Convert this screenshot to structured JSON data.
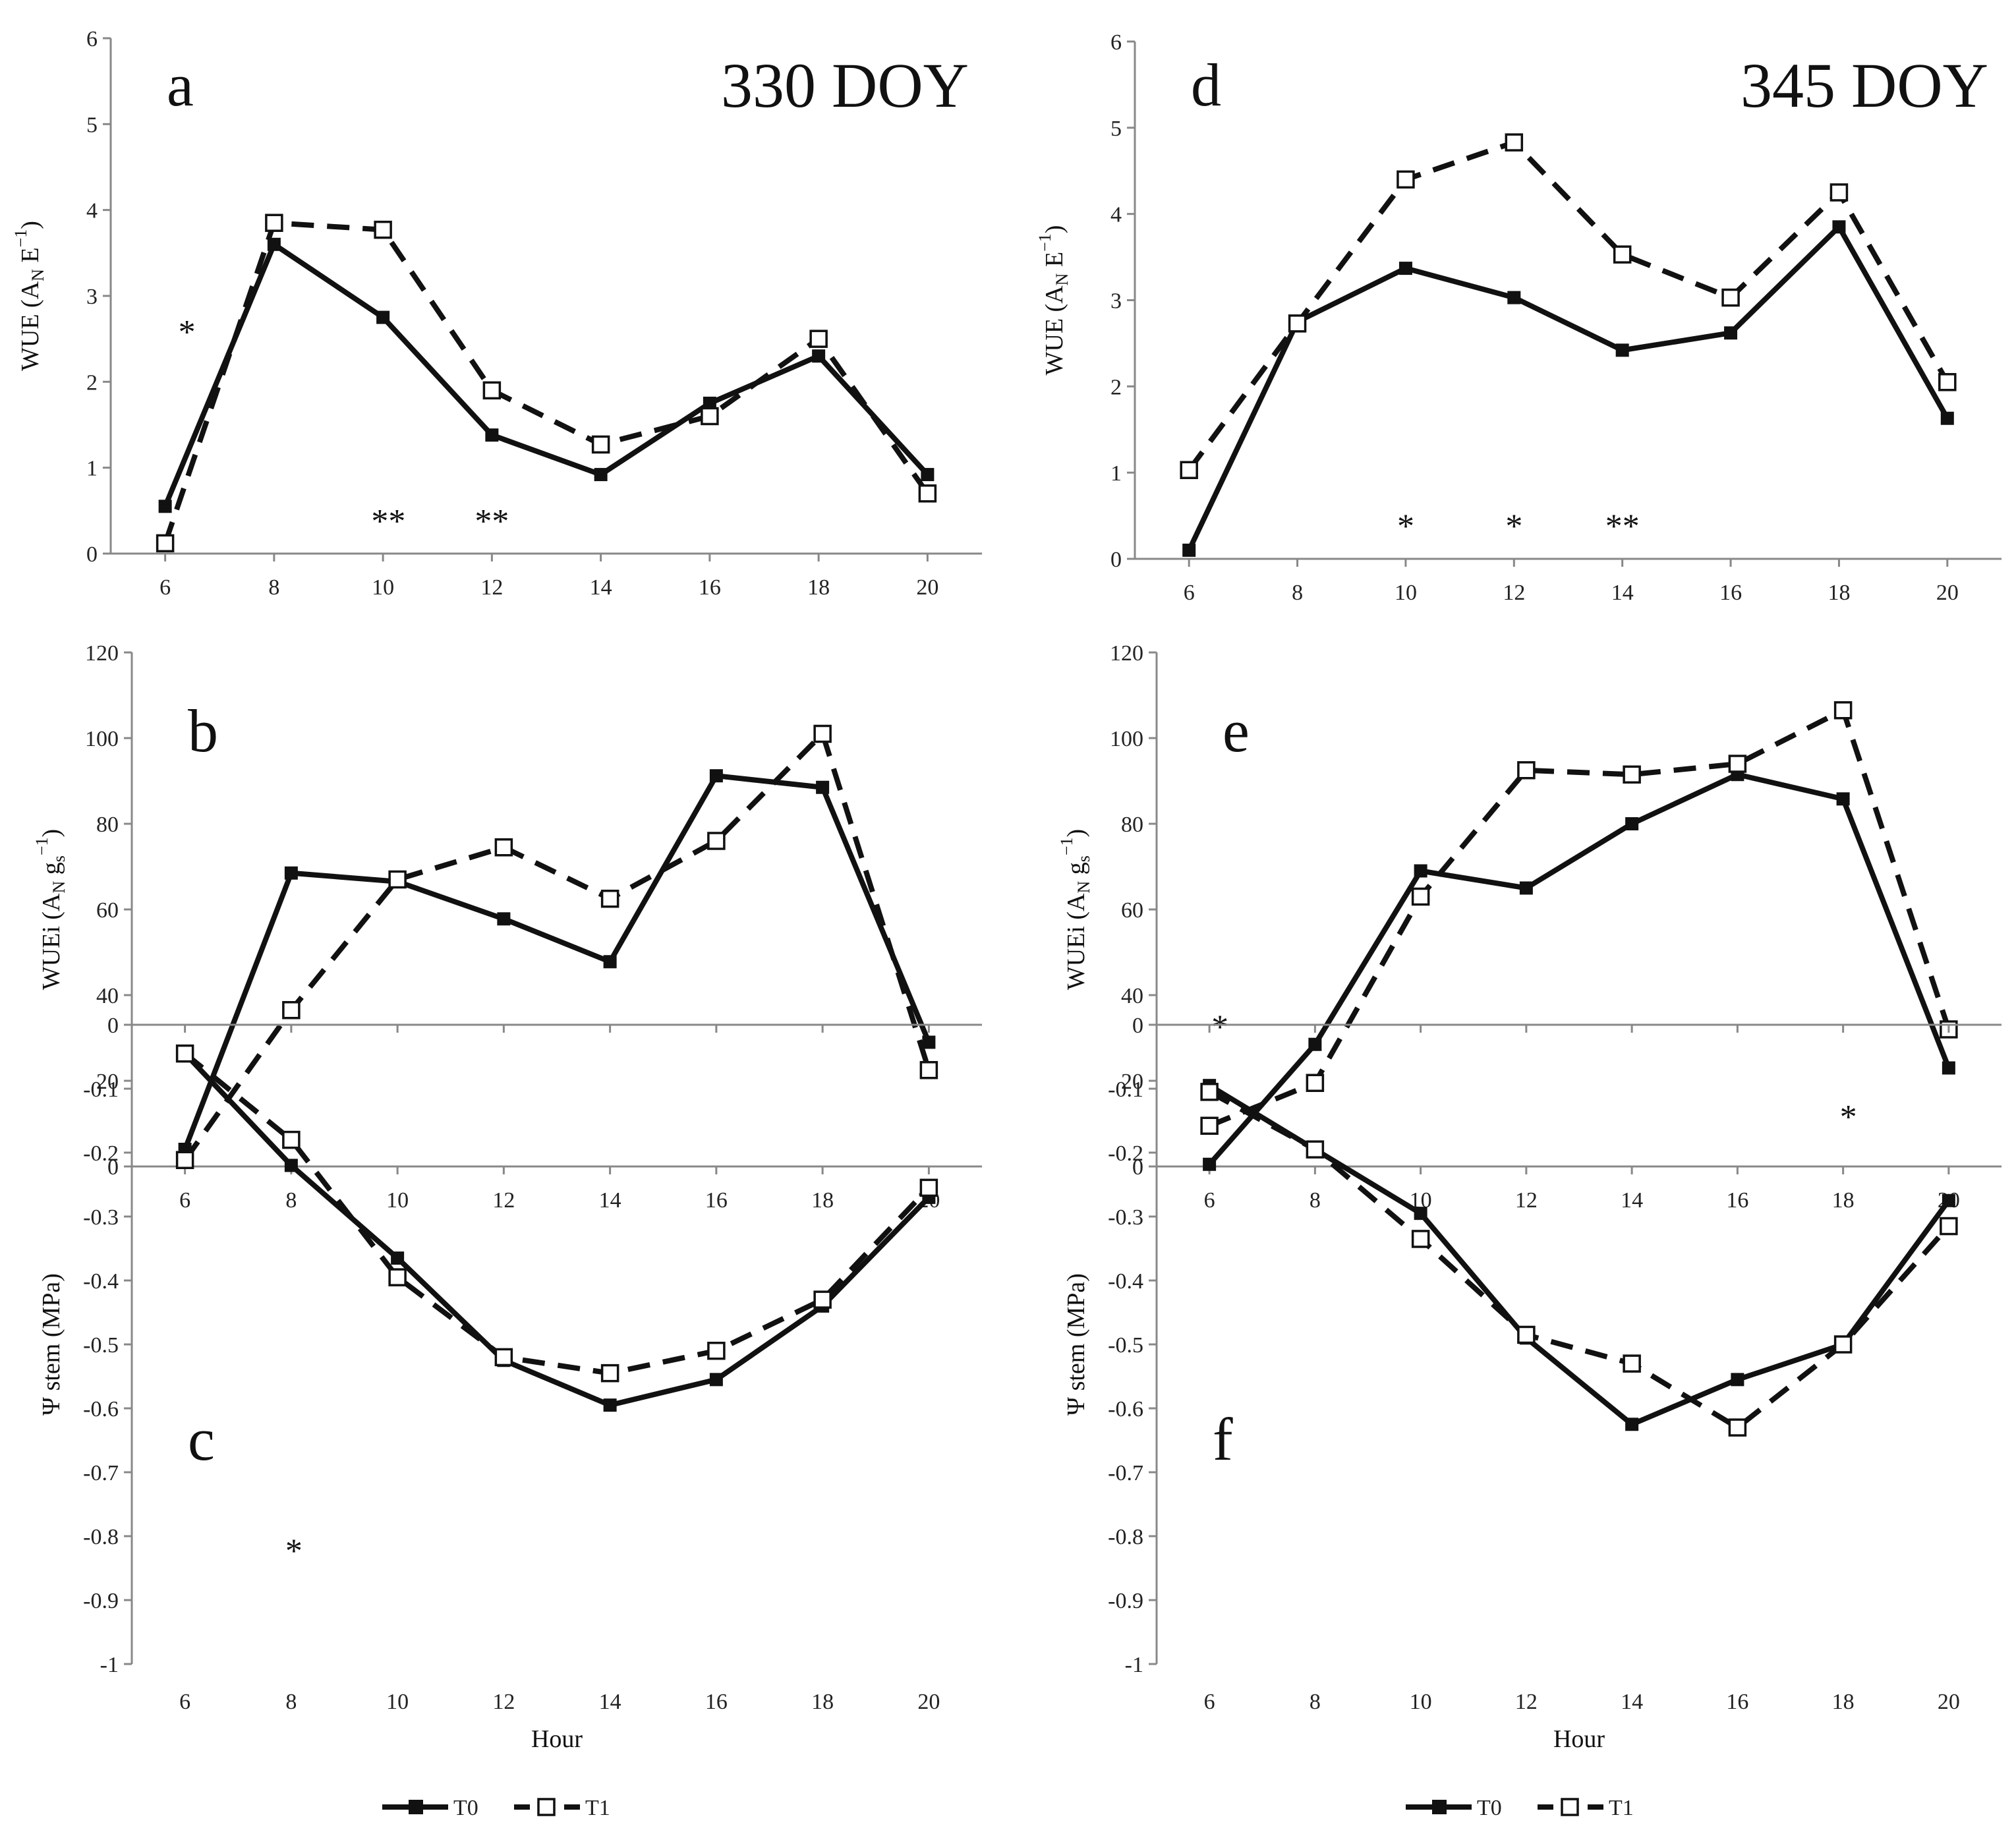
{
  "figure": {
    "legend": {
      "entries": [
        {
          "name": "T0",
          "style": "solid",
          "marker": "filled-square"
        },
        {
          "name": "T1",
          "style": "dashed",
          "marker": "open-square"
        }
      ]
    },
    "colors": {
      "line": "#111111",
      "background": "#ffffff",
      "axis": "#888888"
    }
  },
  "chart_data": [
    {
      "id": "a",
      "type": "line",
      "letter": "a",
      "title": "330 DOY",
      "ylabel_main": "WUE (A",
      "ylabel_sub": "N",
      "ylabel_rest": " E",
      "ylabel_sup": "−1",
      "ylabel_end": ")",
      "xlabel": "",
      "x": [
        6,
        8,
        10,
        12,
        14,
        16,
        18,
        20
      ],
      "ylim": [
        0,
        6
      ],
      "yticks": [
        0,
        1,
        2,
        3,
        4,
        5,
        6
      ],
      "ytick_labels": [
        "0",
        "1",
        "2",
        "3",
        "4",
        "5",
        "6"
      ],
      "series": [
        {
          "name": "T0",
          "values": [
            0.55,
            3.6,
            2.75,
            1.38,
            0.92,
            1.75,
            2.3,
            0.92
          ]
        },
        {
          "name": "T1",
          "values": [
            0.12,
            3.85,
            3.77,
            1.9,
            1.27,
            1.6,
            2.5,
            0.7
          ]
        }
      ],
      "annotations": [
        {
          "text": "*",
          "x": 6.4,
          "y": 2.6
        },
        {
          "text": "**",
          "x": 10.1,
          "y": 0.4
        },
        {
          "text": "**",
          "x": 12.0,
          "y": 0.4
        }
      ]
    },
    {
      "id": "b",
      "type": "line",
      "letter": "b",
      "title": "",
      "ylabel_main": "WUEi (A",
      "ylabel_sub": "N",
      "ylabel_rest": " g",
      "ylabel_sub2": "s",
      "ylabel_sup": "−1",
      "ylabel_end": ")",
      "xlabel": "",
      "x": [
        6,
        8,
        10,
        12,
        14,
        16,
        18,
        20
      ],
      "ylim": [
        0,
        120
      ],
      "yticks": [
        0,
        20,
        40,
        60,
        80,
        100,
        120
      ],
      "ytick_labels": [
        "0",
        "20",
        "40",
        "60",
        "80",
        "100",
        "120"
      ],
      "series": [
        {
          "name": "T0",
          "values": [
            4,
            68.5,
            66.5,
            57.8,
            47.8,
            91.2,
            88.5,
            29
          ]
        },
        {
          "name": "T1",
          "values": [
            1.5,
            36.5,
            67,
            74.5,
            62.5,
            76,
            101,
            22.5
          ]
        }
      ],
      "annotations": []
    },
    {
      "id": "c",
      "type": "line",
      "letter": "c",
      "title": "",
      "ylabel_main": "Ψ stem (MPa)",
      "xlabel": "Hour",
      "x": [
        6,
        8,
        10,
        12,
        14,
        16,
        18,
        20
      ],
      "ylim": [
        -1,
        0
      ],
      "yticks": [
        0,
        -0.1,
        -0.2,
        -0.3,
        -0.4,
        -0.5,
        -0.6,
        -0.7,
        -0.8,
        -0.9,
        -1
      ],
      "ytick_labels": [
        "0",
        "-0.1",
        "-0.2",
        "-0.3",
        "-0.4",
        "-0.5",
        "-0.6",
        "-0.7",
        "-0.8",
        "-0.9",
        "-1"
      ],
      "series": [
        {
          "name": "T0",
          "values": [
            -0.045,
            -0.22,
            -0.365,
            -0.525,
            -0.595,
            -0.555,
            -0.44,
            -0.27
          ]
        },
        {
          "name": "T1",
          "values": [
            -0.045,
            -0.18,
            -0.395,
            -0.52,
            -0.545,
            -0.51,
            -0.43,
            -0.255
          ]
        }
      ],
      "annotations": [
        {
          "text": "*",
          "x": 8.05,
          "y": -0.82
        }
      ]
    },
    {
      "id": "d",
      "type": "line",
      "letter": "d",
      "title": "345 DOY",
      "ylabel_main": "WUE (A",
      "ylabel_sub": "N",
      "ylabel_rest": " E",
      "ylabel_sup": "−1",
      "ylabel_end": ")",
      "xlabel": "",
      "x": [
        6,
        8,
        10,
        12,
        14,
        16,
        18,
        20
      ],
      "ylim": [
        0,
        6
      ],
      "yticks": [
        0,
        1,
        2,
        3,
        4,
        5,
        6
      ],
      "ytick_labels": [
        "0",
        "1",
        "2",
        "3",
        "4",
        "5",
        "6"
      ],
      "series": [
        {
          "name": "T0",
          "values": [
            0.1,
            2.75,
            3.37,
            3.03,
            2.42,
            2.62,
            3.85,
            1.63
          ]
        },
        {
          "name": "T1",
          "values": [
            1.03,
            2.73,
            4.4,
            4.83,
            3.53,
            3.03,
            4.25,
            2.05
          ]
        }
      ],
      "annotations": [
        {
          "text": "*",
          "x": 10.0,
          "y": 0.4
        },
        {
          "text": "*",
          "x": 12.0,
          "y": 0.4
        },
        {
          "text": "**",
          "x": 14.0,
          "y": 0.4
        }
      ]
    },
    {
      "id": "e",
      "type": "line",
      "letter": "e",
      "title": "",
      "ylabel_main": "WUEi (A",
      "ylabel_sub": "N",
      "ylabel_rest": " g",
      "ylabel_sub2": "s",
      "ylabel_sup": "−1",
      "ylabel_end": ")",
      "xlabel": "",
      "x": [
        6,
        8,
        10,
        12,
        14,
        16,
        18,
        20
      ],
      "ylim": [
        0,
        120
      ],
      "yticks": [
        0,
        20,
        40,
        60,
        80,
        100,
        120
      ],
      "ytick_labels": [
        "0",
        "20",
        "40",
        "60",
        "80",
        "100",
        "120"
      ],
      "series": [
        {
          "name": "T0",
          "values": [
            0.5,
            28.5,
            69,
            65,
            80,
            91.5,
            85.8,
            23
          ]
        },
        {
          "name": "T1",
          "values": [
            9.5,
            19.5,
            63,
            92.5,
            91.5,
            94,
            106.5,
            32
          ]
        }
      ],
      "annotations": [
        {
          "text": "*",
          "x": 6.2,
          "y": 33
        },
        {
          "text": "*",
          "x": 18.1,
          "y": 12
        }
      ]
    },
    {
      "id": "f",
      "type": "line",
      "letter": "f",
      "title": "",
      "ylabel_main": "Ψ stem (MPa)",
      "xlabel": "Hour",
      "x": [
        6,
        8,
        10,
        12,
        14,
        16,
        18,
        20
      ],
      "ylim": [
        -1,
        0
      ],
      "yticks": [
        0,
        -0.1,
        -0.2,
        -0.3,
        -0.4,
        -0.5,
        -0.6,
        -0.7,
        -0.8,
        -0.9,
        -1
      ],
      "ytick_labels": [
        "0",
        "-0.1",
        "-0.2",
        "-0.3",
        "-0.4",
        "-0.5",
        "-0.6",
        "-0.7",
        "-0.8",
        "-0.9",
        "-1"
      ],
      "series": [
        {
          "name": "T0",
          "values": [
            -0.095,
            -0.195,
            -0.295,
            -0.49,
            -0.625,
            -0.555,
            -0.5,
            -0.275
          ]
        },
        {
          "name": "T1",
          "values": [
            -0.105,
            -0.195,
            -0.335,
            -0.485,
            -0.53,
            -0.63,
            -0.5,
            -0.315
          ]
        }
      ],
      "annotations": []
    }
  ]
}
